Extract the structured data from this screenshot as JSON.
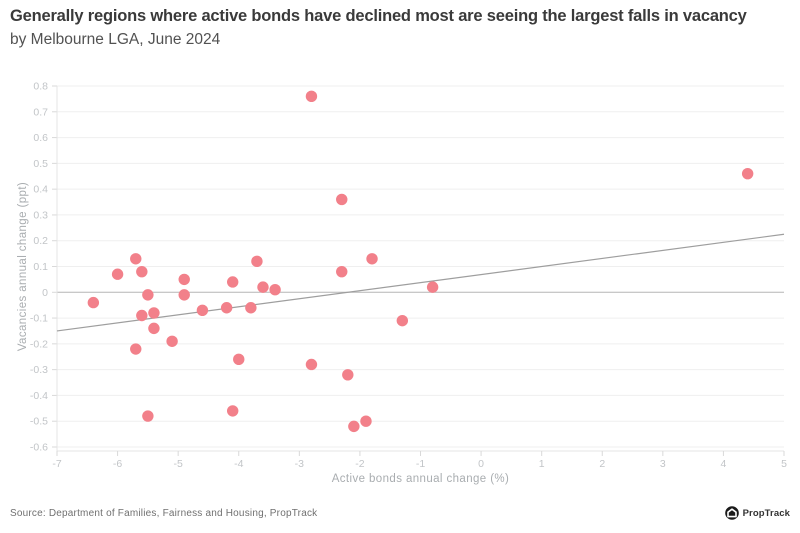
{
  "header": {
    "title": "Generally regions where active bonds have declined most are seeing the largest falls in vacancy",
    "subtitle": "by Melbourne LGA, June 2024"
  },
  "footer": {
    "source": "Source: Department of Families, Fairness and Housing, PropTrack",
    "logo_text": "PropTrack"
  },
  "chart_data": {
    "type": "scatter",
    "title": "Generally regions where active bonds have declined most are seeing the largest falls in vacancy",
    "subtitle": "by Melbourne LGA, June 2024",
    "xlabel": "Active bonds annual change (%)",
    "ylabel": "Vacancies annual change (ppt)",
    "xlim": [
      -7,
      5
    ],
    "ylim": [
      -0.6,
      0.8
    ],
    "xticks": [
      "-7",
      "-6",
      "-5",
      "-4",
      "-3",
      "-2",
      "-1",
      "0",
      "1",
      "2",
      "3",
      "4",
      "5"
    ],
    "yticks": [
      "0.8",
      "0.7",
      "0.6",
      "0.5",
      "0.4",
      "0.3",
      "0.2",
      "0.1",
      "0",
      "-0.1",
      "-0.2",
      "-0.3",
      "-0.4",
      "-0.5",
      "-0.6"
    ],
    "grid": "horizontal",
    "legend": "none",
    "point_color": "#f2808a",
    "trendline": {
      "x1": -7,
      "y1": -0.15,
      "x2": 5,
      "y2": 0.225,
      "color": "#9e9e9e"
    },
    "points": [
      [
        -6.4,
        -0.04
      ],
      [
        -6.0,
        0.07
      ],
      [
        -5.7,
        0.13
      ],
      [
        -5.7,
        -0.22
      ],
      [
        -5.6,
        0.08
      ],
      [
        -5.6,
        -0.09
      ],
      [
        -5.5,
        -0.01
      ],
      [
        -5.5,
        -0.48
      ],
      [
        -5.4,
        -0.08
      ],
      [
        -5.4,
        -0.14
      ],
      [
        -5.1,
        -0.19
      ],
      [
        -4.9,
        0.05
      ],
      [
        -4.9,
        -0.01
      ],
      [
        -4.6,
        -0.07
      ],
      [
        -4.2,
        -0.06
      ],
      [
        -4.1,
        0.04
      ],
      [
        -4.1,
        -0.46
      ],
      [
        -4.0,
        -0.26
      ],
      [
        -3.8,
        -0.06
      ],
      [
        -3.7,
        0.12
      ],
      [
        -3.6,
        0.02
      ],
      [
        -3.4,
        0.01
      ],
      [
        -2.8,
        0.76
      ],
      [
        -2.8,
        -0.28
      ],
      [
        -2.3,
        0.36
      ],
      [
        -2.3,
        0.08
      ],
      [
        -2.2,
        -0.32
      ],
      [
        -2.1,
        -0.52
      ],
      [
        -1.9,
        -0.5
      ],
      [
        -1.8,
        0.13
      ],
      [
        -1.3,
        -0.11
      ],
      [
        -0.8,
        0.02
      ],
      [
        4.4,
        0.46
      ]
    ],
    "colors": {
      "grid": "#efefef",
      "zero_line": "#b6b6b6",
      "axis": "#e4e4e4",
      "tick": "#d9d9d9",
      "tick_label": "#c2c5c8",
      "axis_title": "#a9adb0"
    }
  }
}
